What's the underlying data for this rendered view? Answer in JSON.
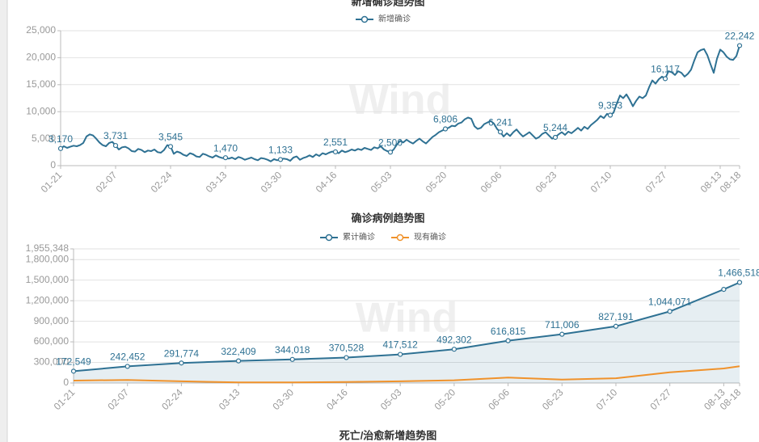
{
  "chart_data": [
    {
      "type": "line",
      "title": "新增确诊趋势图",
      "watermark": "Wind",
      "categories": [
        "01-21",
        null,
        null,
        null,
        null,
        null,
        null,
        null,
        null,
        null,
        null,
        null,
        null,
        null,
        null,
        null,
        null,
        "02-07",
        null,
        null,
        null,
        null,
        null,
        null,
        null,
        null,
        null,
        null,
        null,
        null,
        null,
        null,
        null,
        null,
        "02-24",
        null,
        null,
        null,
        null,
        null,
        null,
        null,
        null,
        null,
        null,
        null,
        null,
        null,
        null,
        null,
        null,
        "03-13",
        null,
        null,
        null,
        null,
        null,
        null,
        null,
        null,
        null,
        null,
        null,
        null,
        null,
        null,
        null,
        null,
        "03-30",
        null,
        null,
        null,
        null,
        null,
        null,
        null,
        null,
        null,
        null,
        null,
        null,
        null,
        null,
        null,
        null,
        "04-16",
        null,
        null,
        null,
        null,
        null,
        null,
        null,
        null,
        null,
        null,
        null,
        null,
        null,
        null,
        null,
        null,
        "05-03",
        null,
        null,
        null,
        null,
        null,
        null,
        null,
        null,
        null,
        null,
        null,
        null,
        null,
        null,
        null,
        null,
        "05-20",
        null,
        null,
        null,
        null,
        null,
        null,
        null,
        null,
        null,
        null,
        null,
        null,
        null,
        null,
        null,
        null,
        "06-06",
        null,
        null,
        null,
        null,
        null,
        null,
        null,
        null,
        null,
        null,
        null,
        null,
        null,
        null,
        null,
        null,
        "06-23",
        null,
        null,
        null,
        null,
        null,
        null,
        null,
        null,
        null,
        null,
        null,
        null,
        null,
        null,
        null,
        null,
        "07-10",
        null,
        null,
        null,
        null,
        null,
        null,
        null,
        null,
        null,
        null,
        null,
        null,
        null,
        null,
        null,
        null,
        "07-27",
        null,
        null,
        null,
        null,
        null,
        null,
        null,
        null,
        null,
        null,
        null,
        null,
        null,
        null,
        null,
        null,
        "08-13",
        null,
        null,
        null,
        null,
        null,
        "08-18"
      ],
      "series": [
        {
          "name": "新增确诊",
          "color": "#2e7193",
          "values": [
            3170,
            3600,
            3300,
            3500,
            3700,
            3600,
            3800,
            4200,
            5400,
            5800,
            5600,
            5000,
            4300,
            3800,
            3600,
            4200,
            4400,
            3731,
            3000,
            3400,
            3500,
            3200,
            2700,
            2600,
            3100,
            2900,
            2500,
            2800,
            2700,
            3000,
            2500,
            2400,
            2900,
            3800,
            3545,
            2200,
            2600,
            2400,
            2000,
            1800,
            2300,
            2100,
            1700,
            1600,
            2200,
            2000,
            1700,
            1500,
            1900,
            1600,
            1400,
            1470,
            1300,
            1500,
            1200,
            1600,
            1400,
            1100,
            1300,
            1500,
            1200,
            1000,
            1400,
            1300,
            1100,
            800,
            1200,
            1000,
            1133,
            1300,
            1200,
            900,
            1500,
            1700,
            1100,
            1400,
            1600,
            1900,
            1600,
            2100,
            1800,
            2300,
            2100,
            2400,
            2600,
            2551,
            2300,
            2800,
            2500,
            2700,
            3000,
            2800,
            3100,
            2900,
            3300,
            3100,
            2900,
            3400,
            3200,
            3600,
            3000,
            2700,
            2500,
            3000,
            3900,
            4600,
            4300,
            4800,
            4400,
            4100,
            4600,
            5000,
            4500,
            4100,
            4700,
            5300,
            5700,
            6200,
            6500,
            6806,
            7000,
            7400,
            7300,
            7800,
            8000,
            8600,
            8900,
            8700,
            7300,
            6800,
            7000,
            7700,
            8000,
            8300,
            7800,
            6800,
            6241,
            5400,
            6000,
            5500,
            6200,
            6700,
            6000,
            5400,
            5800,
            6200,
            5600,
            5000,
            5300,
            5900,
            6200,
            5600,
            5000,
            5244,
            5800,
            6200,
            5700,
            6300,
            6000,
            6500,
            7000,
            6500,
            7200,
            6800,
            7500,
            8000,
            8500,
            9200,
            8800,
            9600,
            9353,
            9800,
            11500,
            13000,
            12500,
            13200,
            12200,
            11000,
            12000,
            12800,
            12500,
            13000,
            14500,
            15800,
            15200,
            16000,
            16500,
            16117,
            17500,
            17300,
            16800,
            17500,
            17200,
            16500,
            17000,
            17800,
            19500,
            21000,
            21400,
            21600,
            20500,
            18800,
            17200,
            19800,
            21500,
            21000,
            20200,
            19700,
            19600,
            20300,
            22242
          ],
          "value_labels": [
            "3,170",
            null,
            null,
            null,
            null,
            null,
            null,
            null,
            null,
            null,
            null,
            null,
            null,
            null,
            null,
            null,
            null,
            "3,731",
            null,
            null,
            null,
            null,
            null,
            null,
            null,
            null,
            null,
            null,
            null,
            null,
            null,
            null,
            null,
            null,
            "3,545",
            null,
            null,
            null,
            null,
            null,
            null,
            null,
            null,
            null,
            null,
            null,
            null,
            null,
            null,
            null,
            null,
            "1,470",
            null,
            null,
            null,
            null,
            null,
            null,
            null,
            null,
            null,
            null,
            null,
            null,
            null,
            null,
            null,
            null,
            "1,133",
            null,
            null,
            null,
            null,
            null,
            null,
            null,
            null,
            null,
            null,
            null,
            null,
            null,
            null,
            null,
            null,
            "2,551",
            null,
            null,
            null,
            null,
            null,
            null,
            null,
            null,
            null,
            null,
            null,
            null,
            null,
            null,
            null,
            null,
            "2,500",
            null,
            null,
            null,
            null,
            null,
            null,
            null,
            null,
            null,
            null,
            null,
            null,
            null,
            null,
            null,
            null,
            "6,806",
            null,
            null,
            null,
            null,
            null,
            null,
            null,
            null,
            null,
            null,
            null,
            null,
            null,
            null,
            null,
            null,
            "6,241",
            null,
            null,
            null,
            null,
            null,
            null,
            null,
            null,
            null,
            null,
            null,
            null,
            null,
            null,
            null,
            null,
            "5,244",
            null,
            null,
            null,
            null,
            null,
            null,
            null,
            null,
            null,
            null,
            null,
            null,
            null,
            null,
            null,
            null,
            "9,353",
            null,
            null,
            null,
            null,
            null,
            null,
            null,
            null,
            null,
            null,
            null,
            null,
            null,
            null,
            null,
            null,
            "16,117",
            null,
            null,
            null,
            null,
            null,
            null,
            null,
            null,
            null,
            null,
            null,
            null,
            null,
            null,
            null,
            null,
            null,
            null,
            null,
            null,
            null,
            null,
            "22,242"
          ]
        }
      ],
      "ylim": [
        0,
        25000
      ],
      "yticks": [
        0,
        {
          "value": 5000,
          "label": "5,000"
        },
        {
          "value": 10000,
          "label": "10,000"
        },
        {
          "value": 15000,
          "label": "15,000"
        },
        {
          "value": 20000,
          "label": "20,000"
        },
        {
          "value": 25000,
          "label": "25,000"
        }
      ],
      "grid": true
    },
    {
      "type": "line",
      "title": "确诊病例趋势图",
      "watermark": "Wind",
      "categories": [
        "01-21",
        "02-07",
        "02-24",
        "03-13",
        "03-30",
        "04-16",
        "05-03",
        "05-20",
        "06-06",
        "06-23",
        "07-10",
        "07-27",
        "08-13",
        "08-18"
      ],
      "series": [
        {
          "name": "累计确诊",
          "color": "#2e7193",
          "area": true,
          "values": [
            172549,
            242452,
            291774,
            322409,
            344018,
            370528,
            417512,
            492302,
            616815,
            711006,
            827191,
            1044071,
            1365000,
            1466518
          ],
          "value_labels": [
            "172,549",
            "242,452",
            "291,774",
            "322,409",
            "344,018",
            "370,528",
            "417,512",
            "492,302",
            "616,815",
            "711,006",
            "827,191",
            "1,044,071",
            null,
            "1,466,518"
          ]
        },
        {
          "name": "现有确诊",
          "color": "#f0922b",
          "values": [
            35000,
            45000,
            25000,
            10000,
            8000,
            15000,
            25000,
            40000,
            80000,
            50000,
            70000,
            155000,
            212000,
            245000
          ]
        }
      ],
      "ylim": [
        0,
        1955348
      ],
      "yticks": [
        0,
        {
          "value": 300000,
          "label": "300,000"
        },
        {
          "value": 600000,
          "label": "600,000"
        },
        {
          "value": 900000,
          "label": "900,000"
        },
        {
          "value": 1200000,
          "label": "1,200,000"
        },
        {
          "value": 1500000,
          "label": "1,500,000"
        },
        {
          "value": 1800000,
          "label": "1,800,000"
        },
        {
          "value": 1955348,
          "label": "1,955,348"
        }
      ],
      "grid": true
    },
    {
      "type": "line",
      "title": "死亡/治愈新增趋势图"
    }
  ]
}
